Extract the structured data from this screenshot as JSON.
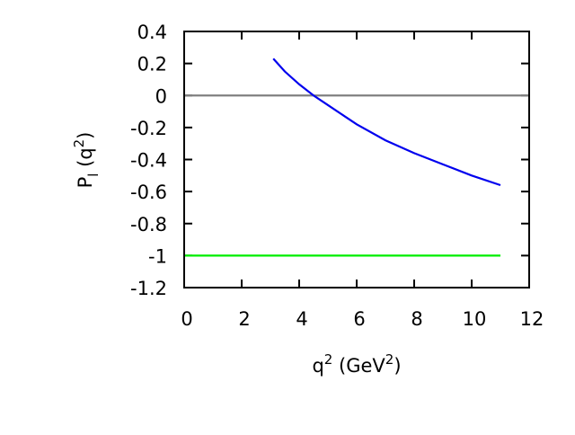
{
  "chart_data": {
    "type": "line",
    "xlabel": [
      "q",
      "2",
      " (GeV",
      "2",
      ")"
    ],
    "ylabel": [
      "P",
      "l",
      " (q",
      "2",
      ")"
    ],
    "xlim": [
      0,
      12
    ],
    "xticks": [
      0,
      2,
      4,
      6,
      8,
      10,
      12
    ],
    "ylim": [
      -1.2,
      0.4
    ],
    "yticks": [
      0.4,
      0.2,
      0,
      -0.2,
      -0.4,
      -0.6,
      -0.8,
      -1,
      -1.2
    ],
    "series": [
      {
        "color": "#808080",
        "x": [
          0,
          12
        ],
        "values": [
          0,
          0
        ]
      },
      {
        "color": "#0000ee",
        "x": [
          3.1,
          3.5,
          4,
          4.5,
          5,
          6,
          7,
          8,
          9,
          10,
          11
        ],
        "values": [
          0.23,
          0.15,
          0.07,
          0.0,
          -0.06,
          -0.18,
          -0.28,
          -0.36,
          -0.43,
          -0.5,
          -0.56
        ]
      },
      {
        "color": "#00ee00",
        "x": [
          0,
          11
        ],
        "values": [
          -1,
          -1
        ]
      }
    ]
  }
}
